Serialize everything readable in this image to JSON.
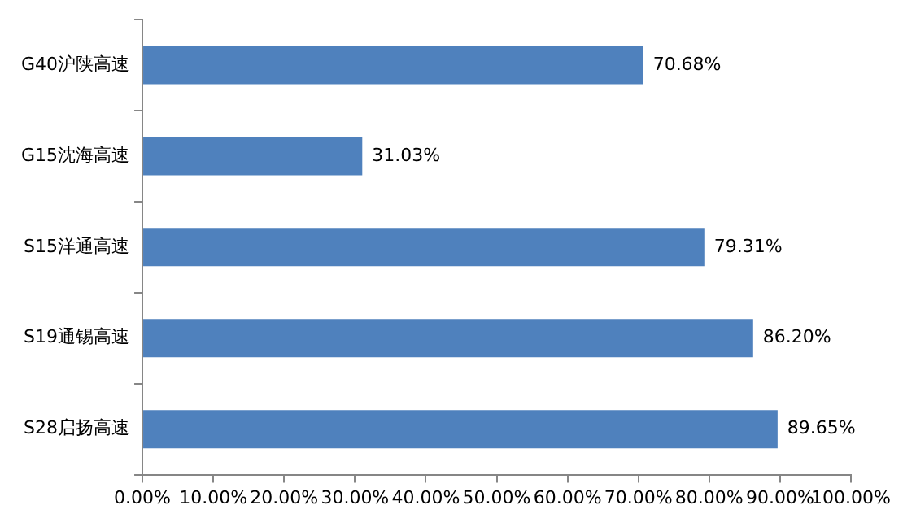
{
  "chart_data": {
    "type": "bar",
    "orientation": "horizontal",
    "categories": [
      "G40沪陕高速",
      "G15沈海高速",
      "S15洋通高速",
      "S19通锡高速",
      "S28启扬高速"
    ],
    "values": [
      70.68,
      31.03,
      79.31,
      86.2,
      89.65
    ],
    "value_labels": [
      "70.68%",
      "31.03%",
      "79.31%",
      "86.20%",
      "89.65%"
    ],
    "color": "#4f81bd",
    "xlim": [
      0,
      100
    ],
    "xticks": [
      {
        "value": 0,
        "label": "0.00%"
      },
      {
        "value": 10,
        "label": "10.00%"
      },
      {
        "value": 20,
        "label": "20.00%"
      },
      {
        "value": 30,
        "label": "30.00%"
      },
      {
        "value": 40,
        "label": "40.00%"
      },
      {
        "value": 50,
        "label": "50.00%"
      },
      {
        "value": 60,
        "label": "60.00%"
      },
      {
        "value": 70,
        "label": "70.00%"
      },
      {
        "value": 80,
        "label": "80.00%"
      },
      {
        "value": 90,
        "label": "90.00%"
      },
      {
        "value": 100,
        "label": "100.00%"
      }
    ],
    "grid": false,
    "legend": false
  }
}
